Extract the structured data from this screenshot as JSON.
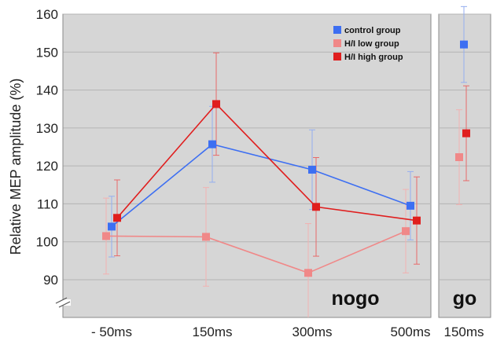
{
  "chart_data": {
    "type": "line",
    "ylabel": "Relative MEP amplitude (%)",
    "ylim": [
      80,
      160
    ],
    "yticks": [
      90,
      100,
      110,
      120,
      130,
      140,
      150,
      160
    ],
    "grid": true,
    "axis_break": true,
    "legend_placement": "top-right",
    "panels": [
      {
        "label": "nogo",
        "categories": [
          "- 50ms",
          "150ms",
          "300ms",
          "500ms"
        ],
        "connected": true
      },
      {
        "label": "go",
        "categories": [
          "150ms"
        ],
        "connected": false
      }
    ],
    "series": [
      {
        "name": "control group",
        "color": "#3d6ff2",
        "errbar_color": "#94aef0",
        "nogo": {
          "values": [
            104,
            125.7,
            119,
            109.5
          ],
          "err": [
            8,
            10,
            10.5,
            9
          ]
        },
        "go": {
          "values": [
            152
          ],
          "err": [
            10
          ]
        }
      },
      {
        "name": "H/I low group",
        "color": "#f08888",
        "errbar_color": "#f2b2b2",
        "nogo": {
          "values": [
            101.5,
            101.3,
            91.8,
            102.8
          ],
          "err": [
            10,
            13,
            13,
            11
          ]
        },
        "go": {
          "values": [
            122.3
          ],
          "err": [
            12.5
          ]
        }
      },
      {
        "name": "H/I high group",
        "color": "#e01e1e",
        "errbar_color": "#e86a6a",
        "nogo": {
          "values": [
            106.3,
            136.3,
            109.2,
            105.6
          ],
          "err": [
            10,
            13.5,
            13,
            11.5
          ]
        },
        "go": {
          "values": [
            128.6
          ],
          "err": [
            12.5
          ]
        }
      }
    ]
  }
}
